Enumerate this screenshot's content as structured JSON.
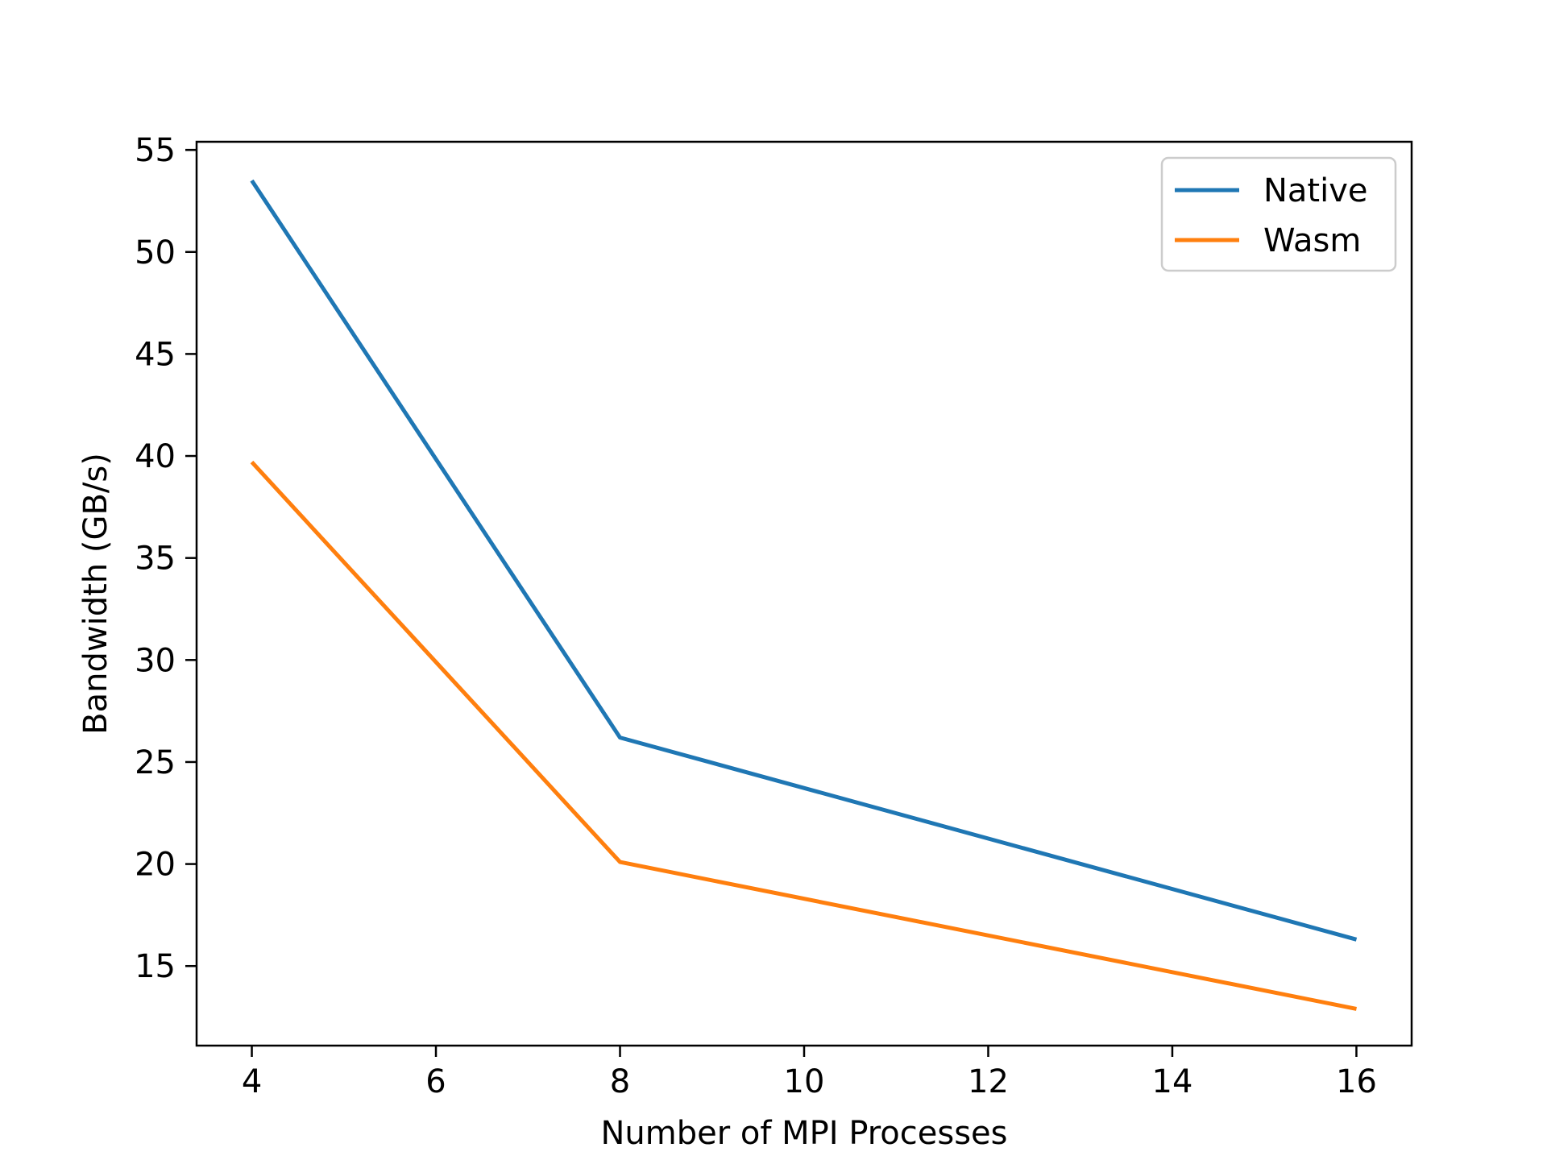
{
  "chart_data": {
    "type": "line",
    "title": "",
    "xlabel": "Number of MPI Processes",
    "ylabel": "Bandwidth (GB/s)",
    "xlim": [
      3.4,
      16.6
    ],
    "ylim": [
      11.1,
      55.4
    ],
    "xticks": [
      4,
      6,
      8,
      10,
      12,
      14,
      16
    ],
    "yticks": [
      15,
      20,
      25,
      30,
      35,
      40,
      45,
      50,
      55
    ],
    "grid": false,
    "legend_position": "top-right",
    "x": [
      4,
      8,
      16
    ],
    "series": [
      {
        "name": "Native",
        "color": "#1f77b4",
        "values": [
          53.5,
          26.2,
          16.3
        ]
      },
      {
        "name": "Wasm",
        "color": "#ff7f0e",
        "values": [
          39.7,
          20.1,
          12.9
        ]
      }
    ]
  }
}
